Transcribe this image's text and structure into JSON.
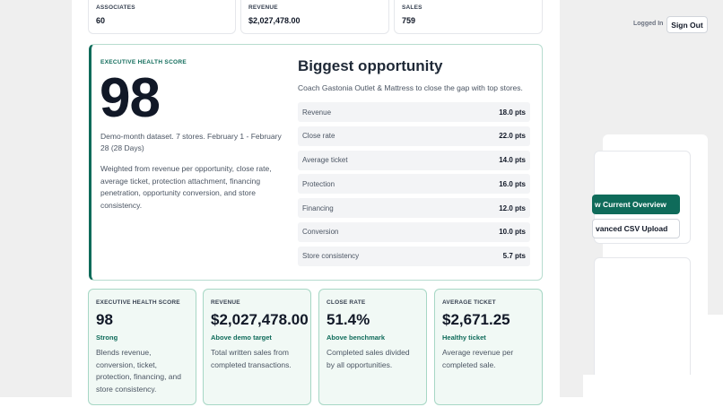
{
  "header": {
    "logged_in": "Logged In",
    "sign_out": "Sign Out"
  },
  "top_metrics": [
    {
      "label": "ASSOCIATES",
      "value": "60"
    },
    {
      "label": "REVENUE",
      "value": "$2,027,478.00"
    },
    {
      "label": "SALES",
      "value": "759"
    }
  ],
  "executive": {
    "label": "EXECUTIVE HEALTH SCORE",
    "score": "98",
    "dataset": "Demo-month dataset. 7 stores. February 1 - February 28 (28 Days)",
    "description": "Weighted from revenue per opportunity, close rate, average ticket, protection attachment, financing penetration, opportunity conversion, and store consistency."
  },
  "opportunity": {
    "title": "Biggest opportunity",
    "subtitle": "Coach Gastonia Outlet & Mattress to close the gap with top stores.",
    "rows": [
      {
        "name": "Revenue",
        "pts": "18.0 pts"
      },
      {
        "name": "Close rate",
        "pts": "22.0 pts"
      },
      {
        "name": "Average ticket",
        "pts": "14.0 pts"
      },
      {
        "name": "Protection",
        "pts": "16.0 pts"
      },
      {
        "name": "Financing",
        "pts": "12.0 pts"
      },
      {
        "name": "Conversion",
        "pts": "10.0 pts"
      },
      {
        "name": "Store consistency",
        "pts": "5.7 pts"
      }
    ]
  },
  "kpis": [
    {
      "label": "EXECUTIVE HEALTH SCORE",
      "value": "98",
      "tag": "Strong",
      "desc": "Blends revenue, conversion, ticket, protection, financing, and store consistency."
    },
    {
      "label": "REVENUE",
      "value": "$2,027,478.00",
      "tag": "Above demo target",
      "desc": "Total written sales from completed transactions."
    },
    {
      "label": "CLOSE RATE",
      "value": "51.4%",
      "tag": "Above benchmark",
      "desc": "Completed sales divided by all opportunities."
    },
    {
      "label": "AVERAGE TICKET",
      "value": "$2,671.25",
      "tag": "Healthy ticket",
      "desc": "Average revenue per completed sale."
    }
  ],
  "side_actions": {
    "overview": "w Current Overview",
    "csv": "vanced CSV Upload"
  },
  "colors": {
    "accent": "#0f6b5a",
    "kpi_bg": "#f1f9f5",
    "kpi_border": "#a7d7c5"
  }
}
